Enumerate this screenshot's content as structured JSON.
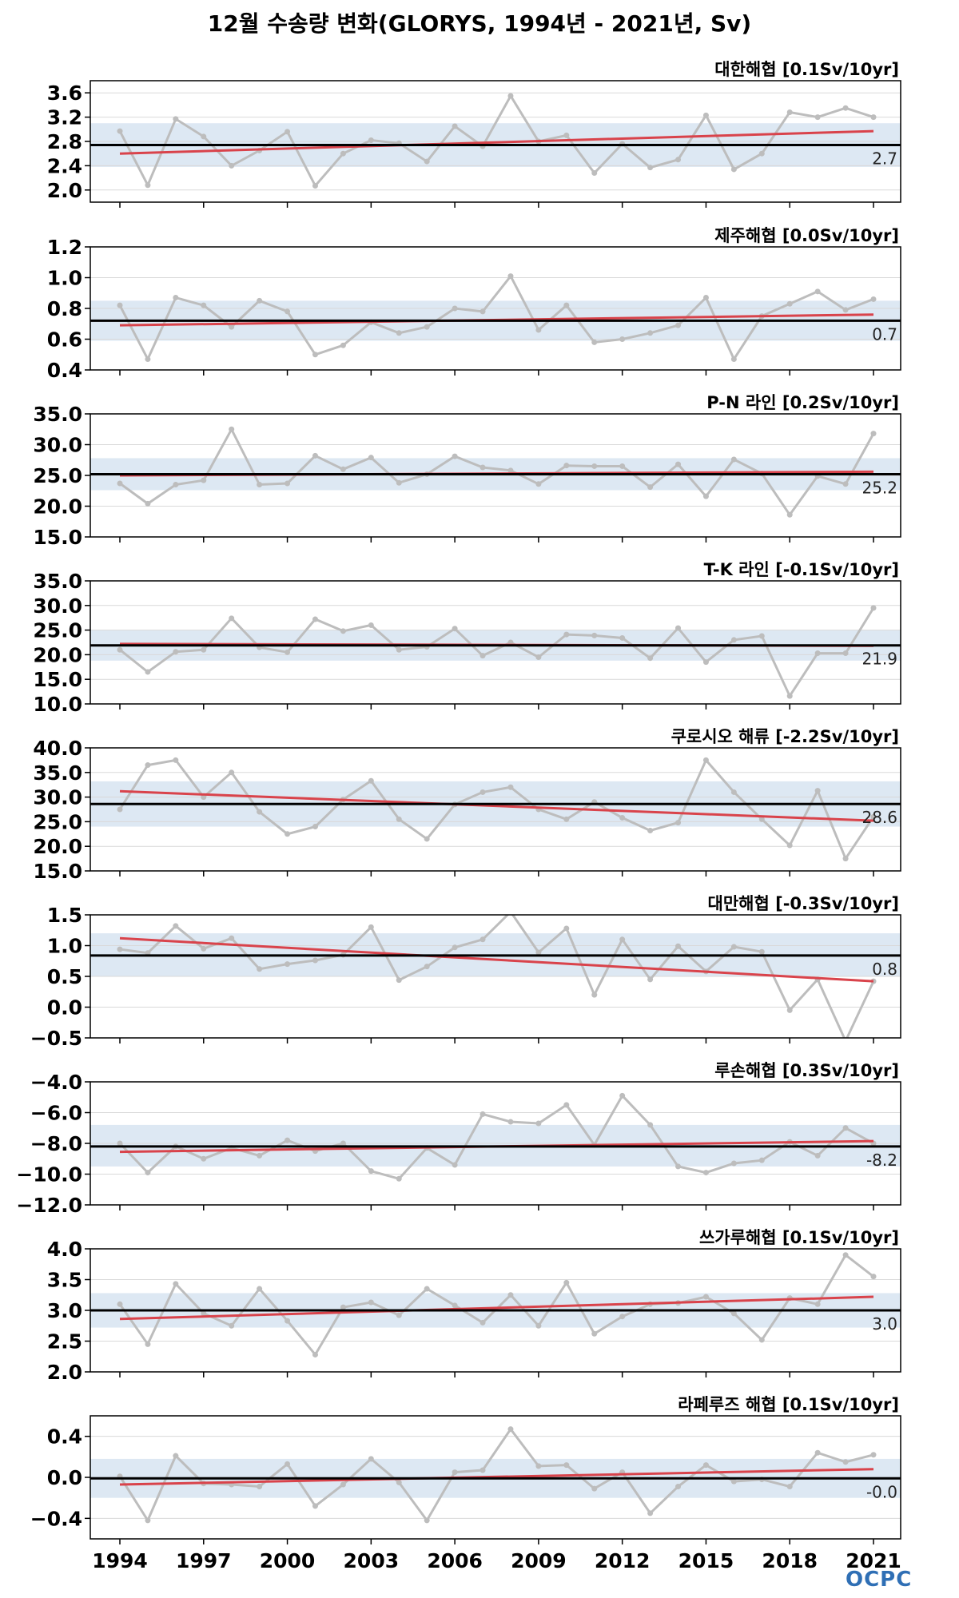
{
  "title": "12월 수송량 변화(GLORYS, 1994년 - 2021년, Sv)",
  "logo": "OCPC",
  "x_ticks": [
    1994,
    1997,
    2000,
    2003,
    2006,
    2009,
    2012,
    2015,
    2018,
    2021
  ],
  "colors": {
    "data_line": "#bdbdbd",
    "trend": "#d9434b",
    "mean": "#000000",
    "band": "#dde8f3",
    "grid": "#d9d9d9"
  },
  "chart_data": [
    {
      "type": "line",
      "title": "대한해협 [0.1Sv/10yr]",
      "mean_label": "2.7",
      "mean": 2.74,
      "band": [
        2.38,
        3.1
      ],
      "ylim": [
        1.8,
        3.8
      ],
      "yticks": [
        2.0,
        2.4,
        2.8,
        3.2,
        3.6
      ],
      "ytick_labels": [
        "2.0",
        "2.4",
        "2.8",
        "3.2",
        "3.6"
      ],
      "trend": [
        2.6,
        2.97
      ],
      "x": [
        1994,
        1995,
        1996,
        1997,
        1998,
        1999,
        2000,
        2001,
        2002,
        2003,
        2004,
        2005,
        2006,
        2007,
        2008,
        2009,
        2010,
        2011,
        2012,
        2013,
        2014,
        2015,
        2016,
        2017,
        2018,
        2019,
        2020,
        2021
      ],
      "values": [
        2.97,
        2.08,
        3.17,
        2.88,
        2.4,
        2.65,
        2.96,
        2.07,
        2.6,
        2.82,
        2.77,
        2.47,
        3.05,
        2.72,
        3.55,
        2.8,
        2.9,
        2.28,
        2.76,
        2.37,
        2.5,
        3.23,
        2.34,
        2.6,
        3.28,
        3.2,
        3.35,
        3.2
      ]
    },
    {
      "type": "line",
      "title": "제주해협 [0.0Sv/10yr]",
      "mean_label": "0.7",
      "mean": 0.72,
      "band": [
        0.59,
        0.85
      ],
      "ylim": [
        0.4,
        1.2
      ],
      "yticks": [
        0.4,
        0.6,
        0.8,
        1.0,
        1.2
      ],
      "ytick_labels": [
        "0.4",
        "0.6",
        "0.8",
        "1.0",
        "1.2"
      ],
      "trend": [
        0.69,
        0.76
      ],
      "x": [
        1994,
        1995,
        1996,
        1997,
        1998,
        1999,
        2000,
        2001,
        2002,
        2003,
        2004,
        2005,
        2006,
        2007,
        2008,
        2009,
        2010,
        2011,
        2012,
        2013,
        2014,
        2015,
        2016,
        2017,
        2018,
        2019,
        2020,
        2021
      ],
      "values": [
        0.82,
        0.47,
        0.87,
        0.82,
        0.68,
        0.85,
        0.78,
        0.5,
        0.56,
        0.71,
        0.64,
        0.68,
        0.8,
        0.78,
        1.01,
        0.66,
        0.82,
        0.58,
        0.6,
        0.64,
        0.69,
        0.87,
        0.47,
        0.75,
        0.83,
        0.91,
        0.79,
        0.86
      ]
    },
    {
      "type": "line",
      "title": "P-N 라인 [0.2Sv/10yr]",
      "mean_label": "25.2",
      "mean": 25.2,
      "band": [
        22.6,
        27.8
      ],
      "ylim": [
        15.0,
        35.0
      ],
      "yticks": [
        15.0,
        20.0,
        25.0,
        30.0,
        35.0
      ],
      "ytick_labels": [
        "15.0",
        "20.0",
        "25.0",
        "30.0",
        "35.0"
      ],
      "trend": [
        25.0,
        25.6
      ],
      "x": [
        1994,
        1995,
        1996,
        1997,
        1998,
        1999,
        2000,
        2001,
        2002,
        2003,
        2004,
        2005,
        2006,
        2007,
        2008,
        2009,
        2010,
        2011,
        2012,
        2013,
        2014,
        2015,
        2016,
        2017,
        2018,
        2019,
        2020,
        2021
      ],
      "values": [
        23.7,
        20.4,
        23.5,
        24.2,
        32.5,
        23.5,
        23.7,
        28.2,
        26.0,
        27.9,
        23.8,
        25.2,
        28.1,
        26.3,
        25.8,
        23.6,
        26.6,
        26.5,
        26.5,
        23.1,
        26.8,
        21.6,
        27.6,
        25.3,
        18.6,
        24.9,
        23.6,
        31.8
      ]
    },
    {
      "type": "line",
      "title": "T-K 라인 [-0.1Sv/10yr]",
      "mean_label": "21.9",
      "mean": 21.9,
      "band": [
        18.8,
        25.0
      ],
      "ylim": [
        10.0,
        35.0
      ],
      "yticks": [
        10.0,
        15.0,
        20.0,
        25.0,
        30.0,
        35.0
      ],
      "ytick_labels": [
        "10.0",
        "15.0",
        "20.0",
        "25.0",
        "30.0",
        "35.0"
      ],
      "trend": [
        22.2,
        21.8
      ],
      "x": [
        1994,
        1995,
        1996,
        1997,
        1998,
        1999,
        2000,
        2001,
        2002,
        2003,
        2004,
        2005,
        2006,
        2007,
        2008,
        2009,
        2010,
        2011,
        2012,
        2013,
        2014,
        2015,
        2016,
        2017,
        2018,
        2019,
        2020,
        2021
      ],
      "values": [
        21.0,
        16.5,
        20.6,
        21.0,
        27.4,
        21.5,
        20.5,
        27.2,
        24.8,
        26.0,
        21.0,
        21.6,
        25.3,
        19.8,
        22.5,
        19.5,
        24.1,
        23.9,
        23.4,
        19.3,
        25.4,
        18.5,
        23.0,
        23.8,
        11.6,
        20.3,
        20.3,
        29.5
      ]
    },
    {
      "type": "line",
      "title": "쿠로시오 해류 [-2.2Sv/10yr]",
      "mean_label": "28.6",
      "mean": 28.6,
      "band": [
        24.0,
        33.2
      ],
      "ylim": [
        15.0,
        40.0
      ],
      "yticks": [
        15.0,
        20.0,
        25.0,
        30.0,
        35.0,
        40.0
      ],
      "ytick_labels": [
        "15.0",
        "20.0",
        "25.0",
        "30.0",
        "35.0",
        "40.0"
      ],
      "trend": [
        31.2,
        25.2
      ],
      "x": [
        1994,
        1995,
        1996,
        1997,
        1998,
        1999,
        2000,
        2001,
        2002,
        2003,
        2004,
        2005,
        2006,
        2007,
        2008,
        2009,
        2010,
        2011,
        2012,
        2013,
        2014,
        2015,
        2016,
        2017,
        2018,
        2019,
        2020,
        2021
      ],
      "values": [
        27.5,
        36.5,
        37.5,
        30.0,
        35.0,
        27.0,
        22.5,
        24.0,
        29.5,
        33.3,
        25.5,
        21.5,
        28.5,
        31.0,
        32.0,
        27.5,
        25.5,
        29.0,
        25.8,
        23.2,
        24.8,
        37.5,
        31.0,
        25.5,
        20.2,
        31.3,
        17.5,
        26.0
      ]
    },
    {
      "type": "line",
      "title": "대만해협 [-0.3Sv/10yr]",
      "mean_label": "0.8",
      "mean": 0.84,
      "band": [
        0.5,
        1.2
      ],
      "ylim": [
        -0.5,
        1.5
      ],
      "yticks": [
        -0.5,
        0.0,
        0.5,
        1.0,
        1.5
      ],
      "ytick_labels": [
        "−0.5",
        "0.0",
        "0.5",
        "1.0",
        "1.5"
      ],
      "trend": [
        1.12,
        0.42
      ],
      "x": [
        1994,
        1995,
        1996,
        1997,
        1998,
        1999,
        2000,
        2001,
        2002,
        2003,
        2004,
        2005,
        2006,
        2007,
        2008,
        2009,
        2010,
        2011,
        2012,
        2013,
        2014,
        2015,
        2016,
        2017,
        2018,
        2019,
        2020,
        2021
      ],
      "values": [
        0.94,
        0.88,
        1.32,
        0.95,
        1.12,
        0.62,
        0.7,
        0.76,
        0.85,
        1.3,
        0.44,
        0.66,
        0.97,
        1.1,
        1.55,
        0.89,
        1.28,
        0.2,
        1.1,
        0.45,
        0.99,
        0.58,
        0.98,
        0.9,
        -0.05,
        0.45,
        -0.55,
        0.42
      ]
    },
    {
      "type": "line",
      "title": "루손해협 [0.3Sv/10yr]",
      "mean_label": "-8.2",
      "mean": -8.2,
      "band": [
        -9.5,
        -6.8
      ],
      "ylim": [
        -12.0,
        -4.0
      ],
      "yticks": [
        -12.0,
        -10.0,
        -8.0,
        -6.0,
        -4.0
      ],
      "ytick_labels": [
        "−12.0",
        "−10.0",
        "−8.0",
        "−6.0",
        "−4.0"
      ],
      "trend": [
        -8.55,
        -7.85
      ],
      "x": [
        1994,
        1995,
        1996,
        1997,
        1998,
        1999,
        2000,
        2001,
        2002,
        2003,
        2004,
        2005,
        2006,
        2007,
        2008,
        2009,
        2010,
        2011,
        2012,
        2013,
        2014,
        2015,
        2016,
        2017,
        2018,
        2019,
        2020,
        2021
      ],
      "values": [
        -8.0,
        -9.9,
        -8.2,
        -9.0,
        -8.3,
        -8.8,
        -7.8,
        -8.5,
        -8.0,
        -9.8,
        -10.3,
        -8.3,
        -9.4,
        -6.1,
        -6.6,
        -6.7,
        -5.5,
        -8.1,
        -4.9,
        -6.8,
        -9.5,
        -9.9,
        -9.3,
        -9.1,
        -7.9,
        -8.8,
        -7.0,
        -8.0
      ]
    },
    {
      "type": "line",
      "title": "쓰가루해협 [0.1Sv/10yr]",
      "mean_label": "3.0",
      "mean": 3.0,
      "band": [
        2.72,
        3.28
      ],
      "ylim": [
        2.0,
        4.0
      ],
      "yticks": [
        2.0,
        2.5,
        3.0,
        3.5,
        4.0
      ],
      "ytick_labels": [
        "2.0",
        "2.5",
        "3.0",
        "3.5",
        "4.0"
      ],
      "trend": [
        2.86,
        3.22
      ],
      "x": [
        1994,
        1995,
        1996,
        1997,
        1998,
        1999,
        2000,
        2001,
        2002,
        2003,
        2004,
        2005,
        2006,
        2007,
        2008,
        2009,
        2010,
        2011,
        2012,
        2013,
        2014,
        2015,
        2016,
        2017,
        2018,
        2019,
        2020,
        2021
      ],
      "values": [
        3.1,
        2.45,
        3.43,
        2.95,
        2.75,
        3.35,
        2.83,
        2.28,
        3.05,
        3.13,
        2.92,
        3.35,
        3.08,
        2.8,
        3.25,
        2.75,
        3.45,
        2.62,
        2.9,
        3.1,
        3.12,
        3.22,
        2.95,
        2.52,
        3.2,
        3.1,
        3.9,
        3.55
      ]
    },
    {
      "type": "line",
      "title": "라페루즈 해협 [0.1Sv/10yr]",
      "mean_label": "-0.0",
      "mean": -0.01,
      "band": [
        -0.2,
        0.18
      ],
      "ylim": [
        -0.6,
        0.6
      ],
      "yticks": [
        -0.4,
        0.0,
        0.4
      ],
      "ytick_labels": [
        "−0.4",
        "0.0",
        "0.4"
      ],
      "trend": [
        -0.07,
        0.08
      ],
      "x": [
        1994,
        1995,
        1996,
        1997,
        1998,
        1999,
        2000,
        2001,
        2002,
        2003,
        2004,
        2005,
        2006,
        2007,
        2008,
        2009,
        2010,
        2011,
        2012,
        2013,
        2014,
        2015,
        2016,
        2017,
        2018,
        2019,
        2020,
        2021
      ],
      "values": [
        0.01,
        -0.42,
        0.21,
        -0.06,
        -0.07,
        -0.09,
        0.13,
        -0.28,
        -0.07,
        0.18,
        -0.05,
        -0.42,
        0.05,
        0.07,
        0.47,
        0.11,
        0.12,
        -0.11,
        0.05,
        -0.35,
        -0.09,
        0.12,
        -0.04,
        -0.02,
        -0.09,
        0.24,
        0.15,
        0.22
      ]
    }
  ]
}
